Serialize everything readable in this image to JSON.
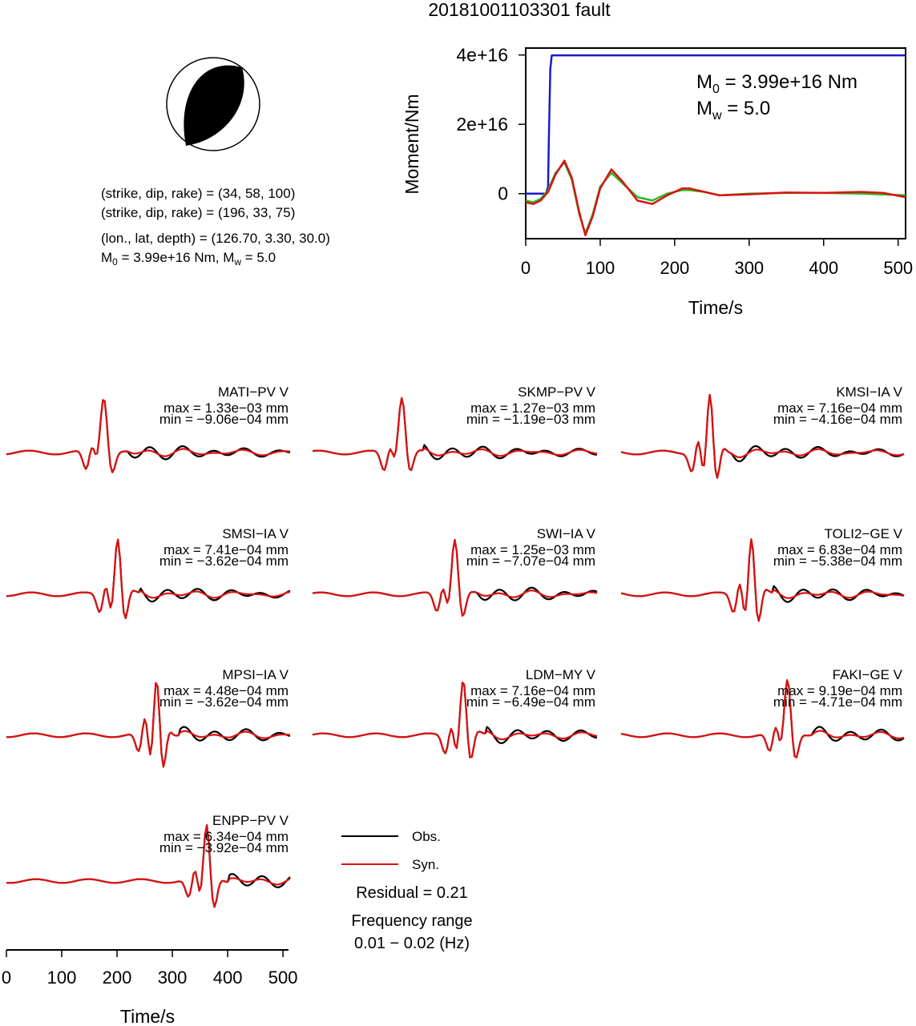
{
  "figure": {
    "title": "20181001103301 fault",
    "info": {
      "plane1": "(strike, dip, rake) = (34, 58, 100)",
      "plane2": "(strike, dip, rake) = (196, 33, 75)",
      "location": "(lon., lat, depth) = (126.70, 3.30, 30.0)",
      "m0_prefix": "M",
      "m0_sub": "0",
      "m0_mid": " = 3.99e+16 Nm, M",
      "mw_sub": "w",
      "mw_tail": " = 5.0"
    },
    "moment_panel": {
      "m0_label": "M",
      "m0_sub": "0",
      "m0_value": " = 3.99e+16 Nm",
      "mw_label": "M",
      "mw_sub": "w",
      "mw_value": " = 5.0"
    },
    "legend": {
      "obs": "Obs.",
      "syn": "Syn.",
      "residual": "Residual = 0.21",
      "freq_title": "Frequency range",
      "freq_value": "0.01 − 0.02 (Hz)"
    },
    "colors": {
      "obs": "#000000",
      "syn": "#dd1111",
      "moment": "#1a1acc",
      "moment_rate_green": "#22bb22",
      "moment_rate_red": "#dd1111"
    }
  },
  "chart_data": [
    {
      "type": "line",
      "name": "moment",
      "xlabel": "Time/s",
      "ylabel": "Moment/Nm",
      "xlim": [
        0,
        510
      ],
      "ylim": [
        -1.3e+16,
        4.2e+16
      ],
      "xticks": [
        0,
        100,
        200,
        300,
        400,
        500
      ],
      "xticklabels": [
        "0",
        "100",
        "200",
        "300",
        "400",
        "500"
      ],
      "yticks": [
        0,
        2e+16,
        4e+16
      ],
      "yticklabels": [
        "0",
        "2e+16",
        "4e+16"
      ],
      "series": [
        {
          "color": "#1a1acc",
          "x": [
            0,
            27,
            30,
            31,
            33,
            35,
            510
          ],
          "y": [
            0,
            0,
            2000000000000000.0,
            1.5e+16,
            3.6e+16,
            3.99e+16,
            3.99e+16
          ]
        },
        {
          "color": "#22bb22",
          "x": [
            0,
            10,
            20,
            30,
            40,
            52,
            62,
            72,
            80,
            90,
            100,
            115,
            130,
            150,
            170,
            190,
            210,
            220,
            240,
            260,
            300,
            350,
            400,
            450,
            510
          ],
          "y": [
            -2000000000000000.0,
            -2500000000000000.0,
            -1500000000000000.0,
            1000000000000000.0,
            6000000000000000.0,
            9000000000000000.0,
            4000000000000000.0,
            -6000000000000000.0,
            -1.15e+16,
            -6000000000000000.0,
            2000000000000000.0,
            6000000000000000.0,
            3000000000000000.0,
            -1000000000000000.0,
            -2000000000000000.0,
            0,
            1000000000000000.0,
            1000000000000000.0,
            500000000000000.0,
            -500000000000000.0,
            0,
            200000000000000.0,
            200000000000000.0,
            0,
            -500000000000000.0
          ]
        },
        {
          "color": "#dd1111",
          "x": [
            0,
            10,
            20,
            30,
            40,
            52,
            62,
            72,
            80,
            90,
            100,
            115,
            130,
            150,
            170,
            190,
            210,
            220,
            240,
            260,
            300,
            350,
            400,
            450,
            480,
            510
          ],
          "y": [
            -2500000000000000.0,
            -3000000000000000.0,
            -2000000000000000.0,
            500000000000000.0,
            5500000000000000.0,
            9500000000000000.0,
            4500000000000000.0,
            -5500000000000000.0,
            -1.2e+16,
            -6500000000000000.0,
            1500000000000000.0,
            7000000000000000.0,
            3500000000000000.0,
            -2000000000000000.0,
            -3000000000000000.0,
            -500000000000000.0,
            1500000000000000.0,
            1500000000000000.0,
            500000000000000.0,
            -500000000000000.0,
            -200000000000000.0,
            300000000000000.0,
            200000000000000.0,
            500000000000000.0,
            200000000000000.0,
            -1000000000000000.0
          ]
        }
      ]
    },
    {
      "type": "line",
      "name": "waveforms",
      "xlabel": "Time/s",
      "xlim": [
        0,
        510
      ],
      "xticks": [
        0,
        100,
        200,
        300,
        400,
        500
      ],
      "xticklabels": [
        "0",
        "100",
        "200",
        "300",
        "400",
        "500"
      ],
      "stations": [
        {
          "label": "MATI−PV V",
          "max": "max = 1.33e−03 mm",
          "min": "min = −9.06e−04 mm",
          "obs_t": 175,
          "obs_f": 1.0,
          "syn_t": 175,
          "syn_f": 1.0
        },
        {
          "label": "SKMP−PV V",
          "max": "max = 1.27e−03 mm",
          "min": "min = −1.19e−03 mm",
          "obs_t": 160,
          "obs_f": 1.0,
          "syn_t": 160,
          "syn_f": 1.0
        },
        {
          "label": "KMSI−IA V",
          "max": "max = 7.16e−04 mm",
          "min": "min = −4.16e−04 mm",
          "obs_t": 160,
          "obs_f": 1.3,
          "syn_t": 160,
          "syn_f": 1.3
        },
        {
          "label": "SMSI−IA V",
          "max": "max = 7.41e−04 mm",
          "min": "min = −3.62e−04 mm",
          "obs_t": 200,
          "obs_f": 1.2,
          "syn_t": 200,
          "syn_f": 1.2
        },
        {
          "label": "SWI−IA V",
          "max": "max = 1.25e−03 mm",
          "min": "min = −7.07e−04 mm",
          "obs_t": 255,
          "obs_f": 1.1,
          "syn_t": 255,
          "syn_f": 1.1
        },
        {
          "label": "TOLI2−GE V",
          "max": "max = 6.83e−04 mm",
          "min": "min = −5.38e−04 mm",
          "obs_t": 235,
          "obs_f": 1.3,
          "syn_t": 235,
          "syn_f": 1.3
        },
        {
          "label": "MPSI−IA V",
          "max": "max = 4.48e−04 mm",
          "min": "min = −3.62e−04 mm",
          "obs_t": 270,
          "obs_f": 1.4,
          "syn_t": 270,
          "syn_f": 1.4
        },
        {
          "label": "LDM−MY V",
          "max": "max = 7.16e−04 mm",
          "min": "min = −6.49e−04 mm",
          "obs_t": 270,
          "obs_f": 1.2,
          "syn_t": 270,
          "syn_f": 1.2
        },
        {
          "label": "FAKI−GE V",
          "max": "max = 9.19e−04 mm",
          "min": "min = −4.71e−04 mm",
          "obs_t": 300,
          "obs_f": 1.1,
          "syn_t": 300,
          "syn_f": 1.1
        },
        {
          "label": "ENPP−PV V",
          "max": "max = 6.34e−04 mm",
          "min": "min = −3.92e−04 mm",
          "obs_t": 360,
          "obs_f": 1.2,
          "syn_t": 360,
          "syn_f": 1.2
        }
      ]
    }
  ]
}
